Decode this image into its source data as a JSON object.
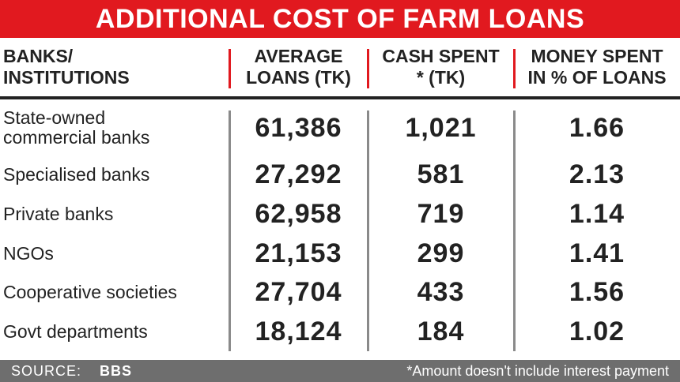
{
  "header": {
    "title": "ADDITIONAL COST OF FARM LOANS"
  },
  "table": {
    "columns": [
      "BANKS/\nINSTITUTIONS",
      "AVERAGE\nLOANS (TK)",
      "CASH SPENT\n* (TK)",
      "MONEY SPENT\nIN % OF LOANS"
    ],
    "rows": [
      [
        "State-owned\ncommercial banks",
        "61,386",
        "1,021",
        "1.66"
      ],
      [
        "Specialised banks",
        "27,292",
        "581",
        "2.13"
      ],
      [
        "Private banks",
        "62,958",
        "719",
        "1.14"
      ],
      [
        "NGOs",
        "21,153",
        "299",
        "1.41"
      ],
      [
        "Cooperative societies",
        "27,704",
        "433",
        "1.56"
      ],
      [
        "Govt departments",
        "18,124",
        "184",
        "1.02"
      ]
    ]
  },
  "footer": {
    "source_label": "SOURCE:",
    "source": "BBS",
    "note": "*Amount doesn't include interest payment"
  }
}
